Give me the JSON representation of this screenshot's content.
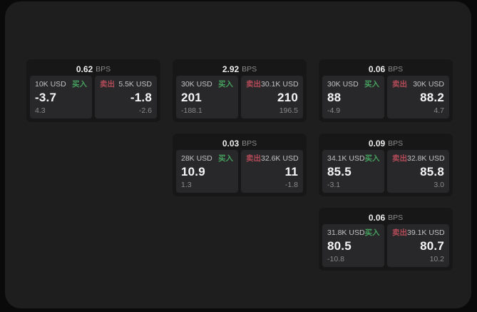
{
  "units": {
    "bps": "BPS"
  },
  "labels": {
    "buy": "买入",
    "sell": "卖出"
  },
  "colors": {
    "page_bg": "#0a0a0a",
    "panel_bg": "#1e1e1f",
    "card_bg": "#171717",
    "tile_bg": "#28282a",
    "buy_green": "#46a05e",
    "sell_red": "#b24a57"
  },
  "cards": [
    {
      "bps": "0.62",
      "buy": {
        "amount": "10K USD",
        "value": "-3.7",
        "delta": "4.3"
      },
      "sell": {
        "amount": "5.5K USD",
        "value": "-1.8",
        "delta": "-2.6"
      }
    },
    {
      "bps": "2.92",
      "buy": {
        "amount": "30K USD",
        "value": "201",
        "delta": "-188.1"
      },
      "sell": {
        "amount": "30.1K USD",
        "value": "210",
        "delta": "196.5"
      }
    },
    {
      "bps": "0.06",
      "buy": {
        "amount": "30K USD",
        "value": "88",
        "delta": "-4.9"
      },
      "sell": {
        "amount": "30K USD",
        "value": "88.2",
        "delta": "4.7"
      }
    },
    {
      "bps": "0.03",
      "buy": {
        "amount": "28K USD",
        "value": "10.9",
        "delta": "1.3"
      },
      "sell": {
        "amount": "32.6K USD",
        "value": "11",
        "delta": "-1.8"
      }
    },
    {
      "bps": "0.09",
      "buy": {
        "amount": "34.1K USD",
        "value": "85.5",
        "delta": "-3.1"
      },
      "sell": {
        "amount": "32.8K USD",
        "value": "85.8",
        "delta": "3.0"
      }
    },
    {
      "bps": "0.06",
      "buy": {
        "amount": "31.8K USD",
        "value": "80.5",
        "delta": "-10.8"
      },
      "sell": {
        "amount": "39.1K USD",
        "value": "80.7",
        "delta": "10.2"
      }
    }
  ]
}
